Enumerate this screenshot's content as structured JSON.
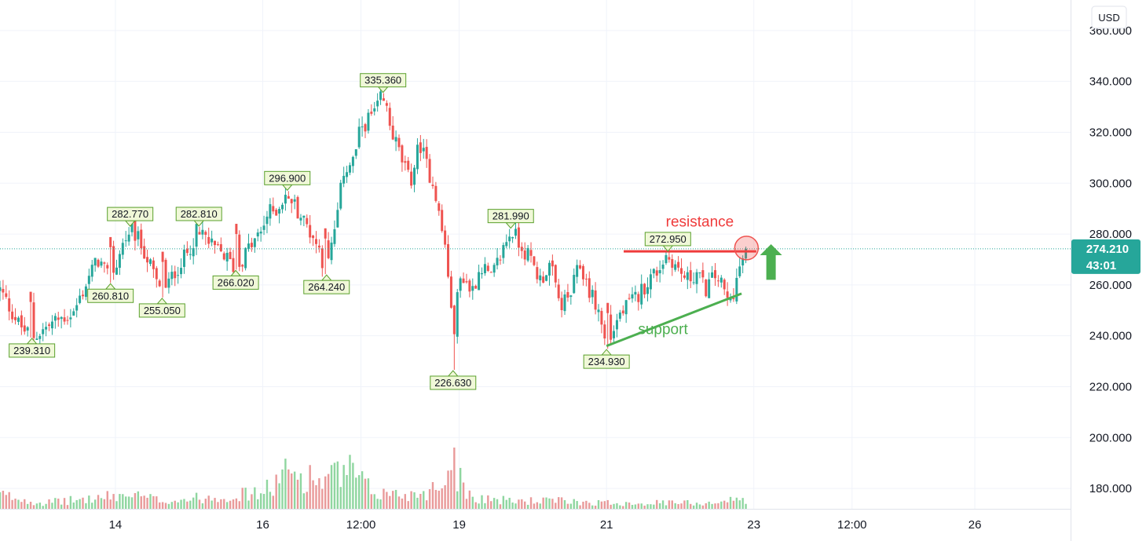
{
  "currency_label": "USD",
  "colors": {
    "up": "#26a69a",
    "down": "#ef5350",
    "grid": "#f0f3fa",
    "pivot_fill": "#f0f8d8",
    "pivot_stroke": "#5aa02c",
    "resistance": "#ef3b3b",
    "support": "#4caf50",
    "arrow": "#4caf50",
    "last_price_bg": "#26a69a"
  },
  "chart_data": {
    "type": "candlestick",
    "y_axis": {
      "ticks": [
        "360.000",
        "340.000",
        "320.000",
        "300.000",
        "280.000",
        "260.000",
        "240.000",
        "220.000",
        "200.000",
        "180.000"
      ],
      "tick_values": [
        360,
        340,
        320,
        300,
        280,
        260,
        240,
        220,
        200,
        180
      ],
      "ylim": [
        172,
        372
      ]
    },
    "x_axis": {
      "ticks": [
        {
          "label": "14",
          "x": 6
        },
        {
          "label": "16",
          "x": 12
        },
        {
          "label": "12:00",
          "x": 16
        },
        {
          "label": "19",
          "x": 20
        },
        {
          "label": "21",
          "x": 26
        },
        {
          "label": "23",
          "x": 32
        },
        {
          "label": "12:00",
          "x": 36
        },
        {
          "label": "26",
          "x": 41
        }
      ],
      "xlim": [
        1.3,
        44.9
      ]
    },
    "price_path": [
      [
        1.3,
        258
      ],
      [
        2.1,
        244
      ],
      [
        2.6,
        239.31
      ],
      [
        3.6,
        246
      ],
      [
        4.3,
        249
      ],
      [
        5.0,
        265
      ],
      [
        5.3,
        270
      ],
      [
        5.8,
        260.81
      ],
      [
        6.3,
        276
      ],
      [
        6.6,
        282.77
      ],
      [
        7.1,
        275
      ],
      [
        7.4,
        268
      ],
      [
        7.9,
        255.05
      ],
      [
        8.4,
        265
      ],
      [
        8.9,
        272
      ],
      [
        9.4,
        282.81
      ],
      [
        9.9,
        275
      ],
      [
        10.4,
        272
      ],
      [
        10.9,
        266.02
      ],
      [
        11.4,
        274
      ],
      [
        11.9,
        280
      ],
      [
        12.2,
        288
      ],
      [
        12.6,
        290
      ],
      [
        13.0,
        296.9
      ],
      [
        13.5,
        288
      ],
      [
        14.0,
        280
      ],
      [
        14.3,
        274
      ],
      [
        14.6,
        264.24
      ],
      [
        15.0,
        285
      ],
      [
        15.3,
        305
      ],
      [
        15.7,
        309
      ],
      [
        16.0,
        322
      ],
      [
        16.4,
        326
      ],
      [
        16.7,
        330
      ],
      [
        16.9,
        335.36
      ],
      [
        17.2,
        322
      ],
      [
        17.7,
        308
      ],
      [
        18.0,
        300
      ],
      [
        18.4,
        316
      ],
      [
        18.7,
        306
      ],
      [
        19.0,
        299
      ],
      [
        19.2,
        286
      ],
      [
        19.45,
        274
      ],
      [
        19.6,
        260
      ],
      [
        19.7,
        244
      ],
      [
        19.75,
        226.63
      ],
      [
        19.85,
        250
      ],
      [
        20.1,
        265
      ],
      [
        20.5,
        257
      ],
      [
        20.9,
        268
      ],
      [
        21.3,
        262
      ],
      [
        21.7,
        272
      ],
      [
        22.1,
        281.99
      ],
      [
        22.5,
        276
      ],
      [
        22.9,
        270
      ],
      [
        23.3,
        262
      ],
      [
        23.7,
        268
      ],
      [
        24.1,
        252
      ],
      [
        24.5,
        255
      ],
      [
        24.9,
        268
      ],
      [
        25.3,
        258
      ],
      [
        25.7,
        249
      ],
      [
        25.9,
        240
      ],
      [
        26.0,
        234.93
      ],
      [
        26.5,
        248
      ],
      [
        26.9,
        252
      ],
      [
        27.3,
        256
      ],
      [
        27.7,
        262
      ],
      [
        28.1,
        266
      ],
      [
        28.5,
        272.95
      ],
      [
        28.9,
        266
      ],
      [
        29.3,
        262
      ],
      [
        29.7,
        265
      ],
      [
        30.0,
        258
      ],
      [
        30.3,
        262
      ],
      [
        30.5,
        264
      ],
      [
        30.8,
        257
      ],
      [
        31.0,
        252
      ],
      [
        31.3,
        262
      ],
      [
        31.6,
        272
      ],
      [
        31.7,
        274.21
      ]
    ],
    "volume_profile": [
      [
        1.3,
        0.35
      ],
      [
        3.0,
        0.15
      ],
      [
        5.0,
        0.25
      ],
      [
        6.5,
        0.35
      ],
      [
        8.0,
        0.2
      ],
      [
        10.0,
        0.3
      ],
      [
        12.0,
        0.4
      ],
      [
        13.0,
        0.9
      ],
      [
        14.5,
        0.7
      ],
      [
        15.5,
        0.95
      ],
      [
        16.5,
        0.4
      ],
      [
        18.0,
        0.35
      ],
      [
        19.0,
        0.5
      ],
      [
        19.75,
        1.0
      ],
      [
        20.5,
        0.3
      ],
      [
        22.0,
        0.2
      ],
      [
        24.0,
        0.2
      ],
      [
        26.0,
        0.15
      ],
      [
        28.0,
        0.15
      ],
      [
        30.0,
        0.15
      ],
      [
        31.7,
        0.25
      ]
    ],
    "pivot_labels": [
      {
        "text": "335.360",
        "x": 16.9,
        "y": 335.36,
        "kind": "high"
      },
      {
        "text": "296.900",
        "x": 13.0,
        "y": 296.9,
        "kind": "high"
      },
      {
        "text": "282.770",
        "x": 6.6,
        "y": 282.77,
        "kind": "high"
      },
      {
        "text": "282.810",
        "x": 9.4,
        "y": 282.81,
        "kind": "high"
      },
      {
        "text": "281.990",
        "x": 22.1,
        "y": 281.99,
        "kind": "high"
      },
      {
        "text": "272.950",
        "x": 28.5,
        "y": 272.95,
        "kind": "high"
      },
      {
        "text": "239.310",
        "x": 2.6,
        "y": 239.31,
        "kind": "low"
      },
      {
        "text": "260.810",
        "x": 5.8,
        "y": 260.81,
        "kind": "low"
      },
      {
        "text": "255.050",
        "x": 7.9,
        "y": 255.05,
        "kind": "low"
      },
      {
        "text": "266.020",
        "x": 10.9,
        "y": 266.02,
        "kind": "low"
      },
      {
        "text": "264.240",
        "x": 14.6,
        "y": 264.24,
        "kind": "low"
      },
      {
        "text": "226.630",
        "x": 19.75,
        "y": 226.63,
        "kind": "low"
      },
      {
        "text": "234.930",
        "x": 26.0,
        "y": 234.93,
        "kind": "low"
      }
    ],
    "annotations": {
      "resistance": {
        "label": "resistance",
        "x1": 26.7,
        "y1": 273.2,
        "x2": 32.1,
        "y2": 273.2
      },
      "support": {
        "label": "support",
        "x1": 26.0,
        "y1": 236,
        "x2": 31.5,
        "y2": 256.6
      },
      "circle": {
        "x": 31.7,
        "y": 274.5
      },
      "arrow": {
        "x": 32.7,
        "y_top": 276,
        "y_bottom": 262
      }
    },
    "last_price": {
      "value": "274.210",
      "countdown": "43:01",
      "y": 274.21
    }
  }
}
